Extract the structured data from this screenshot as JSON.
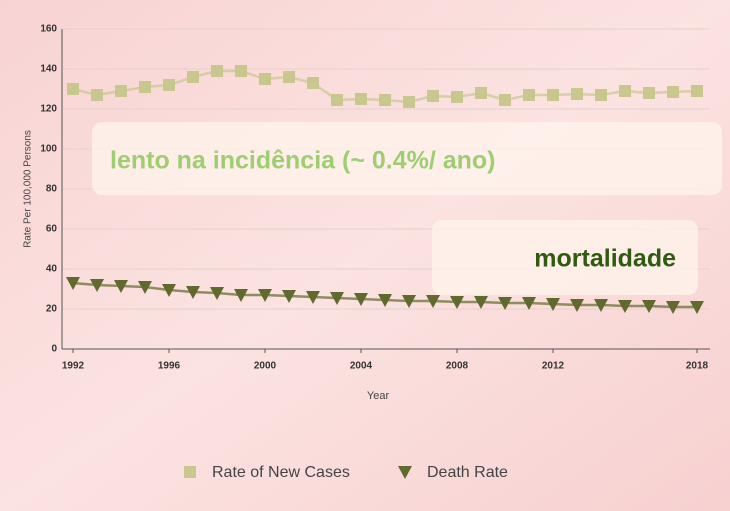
{
  "chart_data": {
    "type": "line",
    "x": [
      1992,
      1993,
      1994,
      1995,
      1996,
      1997,
      1998,
      1999,
      2000,
      2001,
      2002,
      2003,
      2004,
      2005,
      2006,
      2007,
      2008,
      2009,
      2010,
      2011,
      2012,
      2013,
      2014,
      2015,
      2016,
      2017,
      2018
    ],
    "series": [
      {
        "name": "Rate of New Cases",
        "color": "#c8c88e",
        "marker": "square",
        "values": [
          130,
          127,
          129,
          131,
          132,
          136,
          139,
          139,
          135,
          136,
          133,
          124.5,
          125,
          124.5,
          123.5,
          126.5,
          126,
          128,
          124.5,
          127,
          127,
          127.5,
          127,
          129,
          128,
          128.5,
          129
        ]
      },
      {
        "name": "Death Rate",
        "color": "#5f6a2c",
        "marker": "triangle-down",
        "values": [
          33,
          32,
          31.5,
          31,
          29.5,
          28.5,
          28,
          27,
          27,
          26.5,
          26,
          25.5,
          25,
          24.5,
          24,
          24,
          23.5,
          23.5,
          23,
          23,
          22.5,
          22,
          22,
          21.5,
          21.5,
          21,
          21
        ]
      }
    ],
    "xlabel": "Year",
    "ylabel": "Rate Per 100,000 Persons",
    "xlim": [
      1992,
      2018
    ],
    "xticks": [
      1992,
      1996,
      2000,
      2004,
      2008,
      2012,
      2018
    ],
    "ylim": [
      0,
      160
    ],
    "yticks": [
      0,
      20,
      40,
      60,
      80,
      100,
      120,
      140,
      160
    ],
    "grid": true,
    "legend": "bottom",
    "annotations": [
      "lento na incidência (~ 0.4%/ ano)",
      "mortalidade"
    ]
  }
}
